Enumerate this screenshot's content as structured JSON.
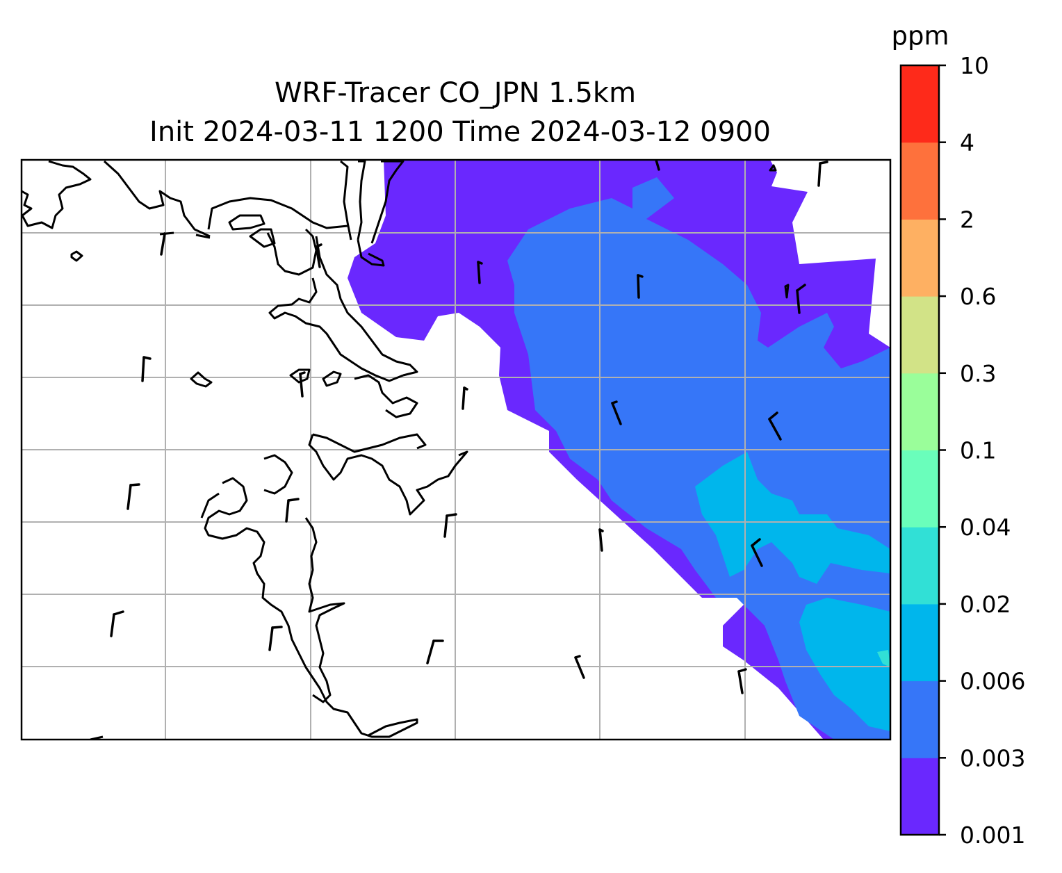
{
  "title": {
    "line1": "WRF-Tracer CO_JPN 1.5km",
    "line2": "Init 2024-03-11 1200 Time 2024-03-12 0900"
  },
  "colorbar": {
    "unit": "ppm",
    "levels": [
      "0.001",
      "0.003",
      "0.006",
      "0.02",
      "0.04",
      "0.1",
      "0.3",
      "0.6",
      "2",
      "4",
      "10"
    ],
    "colors": [
      "#6a28fe",
      "#3676f8",
      "#00b6ec",
      "#31e0d6",
      "#6afebb",
      "#9afe9a",
      "#d2e387",
      "#feb062",
      "#fe713c",
      "#fe2a1a"
    ]
  },
  "map": {
    "gridlines": true,
    "coastline_color": "#000000",
    "grid_color": "#b0b0b0",
    "wind_barbs": "black"
  }
}
